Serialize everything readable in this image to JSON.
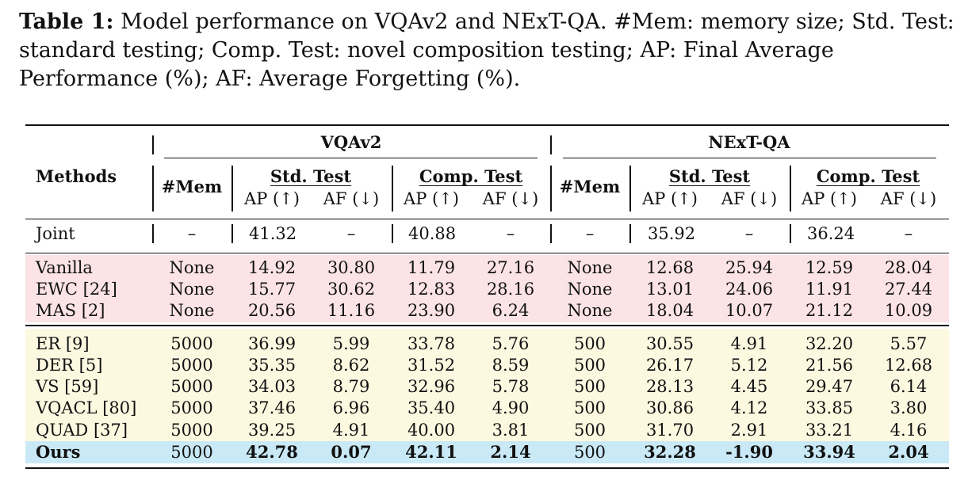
{
  "caption": {
    "label": "Table 1:",
    "text": "Model performance on VQAv2 and NExT-QA. #Mem: memory size; Std. Test: standard testing; Comp. Test: novel composition testing; AP: Final Average Performance (%); AF: Average Forgetting (%)."
  },
  "header": {
    "methods": "Methods",
    "datasets": [
      "VQAv2",
      "NExT-QA"
    ],
    "mem": "#Mem",
    "std_test": "Std. Test",
    "comp_test": "Comp. Test",
    "ap": "AP (↑)",
    "af": "AF (↓)"
  },
  "joint": [
    "Joint",
    "–",
    "41.32",
    "–",
    "40.88",
    "–",
    "–",
    "35.92",
    "–",
    "36.24",
    "–"
  ],
  "rows": [
    {
      "group": "pink",
      "cells": [
        "Vanilla",
        "None",
        "14.92",
        "30.80",
        "11.79",
        "27.16",
        "None",
        "12.68",
        "25.94",
        "12.59",
        "28.04"
      ]
    },
    {
      "group": "pink",
      "cells": [
        "EWC [24]",
        "None",
        "15.77",
        "30.62",
        "12.83",
        "28.16",
        "None",
        "13.01",
        "24.06",
        "11.91",
        "27.44"
      ]
    },
    {
      "group": "pink",
      "cells": [
        "MAS [2]",
        "None",
        "20.56",
        "11.16",
        "23.90",
        "6.24",
        "None",
        "18.04",
        "10.07",
        "21.12",
        "10.09"
      ]
    },
    {
      "group": "yellow",
      "cells": [
        "ER [9]",
        "5000",
        "36.99",
        "5.99",
        "33.78",
        "5.76",
        "500",
        "30.55",
        "4.91",
        "32.20",
        "5.57"
      ]
    },
    {
      "group": "yellow",
      "cells": [
        "DER [5]",
        "5000",
        "35.35",
        "8.62",
        "31.52",
        "8.59",
        "500",
        "26.17",
        "5.12",
        "21.56",
        "12.68"
      ]
    },
    {
      "group": "yellow",
      "cells": [
        "VS [59]",
        "5000",
        "34.03",
        "8.79",
        "32.96",
        "5.78",
        "500",
        "28.13",
        "4.45",
        "29.47",
        "6.14"
      ]
    },
    {
      "group": "yellow",
      "cells": [
        "VQACL [80]",
        "5000",
        "37.46",
        "6.96",
        "35.40",
        "4.90",
        "500",
        "30.86",
        "4.12",
        "33.85",
        "3.80"
      ]
    },
    {
      "group": "yellow",
      "cells": [
        "QUAD [37]",
        "5000",
        "39.25",
        "4.91",
        "40.00",
        "3.81",
        "500",
        "31.70",
        "2.91",
        "33.21",
        "4.16"
      ]
    },
    {
      "group": "blue",
      "cells": [
        "Ours",
        "5000",
        "42.78",
        "0.07",
        "42.11",
        "2.14",
        "500",
        "32.28",
        "-1.90",
        "33.94",
        "2.04"
      ]
    }
  ],
  "colors": {
    "pink": "#fbe3e6",
    "yellow": "#fdf9e1",
    "blue": "#c9e9f6"
  }
}
